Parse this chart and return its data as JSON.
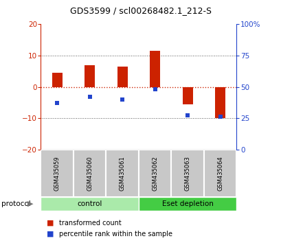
{
  "title": "GDS3599 / scl00268482.1_212-S",
  "samples": [
    "GSM435059",
    "GSM435060",
    "GSM435061",
    "GSM435062",
    "GSM435063",
    "GSM435064"
  ],
  "red_values": [
    4.5,
    7.0,
    6.5,
    11.5,
    -5.5,
    -10.0
  ],
  "blue_percentiles": [
    37,
    42,
    40,
    48,
    27,
    26
  ],
  "ylim_left": [
    -20,
    20
  ],
  "ylim_right": [
    0,
    100
  ],
  "yticks_left": [
    -20,
    -10,
    0,
    10,
    20
  ],
  "yticks_right": [
    0,
    25,
    50,
    75,
    100
  ],
  "groups": [
    {
      "label": "control",
      "n": 3,
      "color": "#aaeaaa"
    },
    {
      "label": "Eset depletion",
      "n": 3,
      "color": "#44cc44"
    }
  ],
  "protocol_label": "protocol",
  "legend_red": "transformed count",
  "legend_blue": "percentile rank within the sample",
  "bar_color": "#cc2200",
  "dot_color": "#2244cc",
  "dashed_color": "#cc2200",
  "grid_color": "#333333",
  "box_color": "#c8c8c8",
  "title_fontsize": 9,
  "tick_fontsize": 7.5,
  "legend_fontsize": 7
}
